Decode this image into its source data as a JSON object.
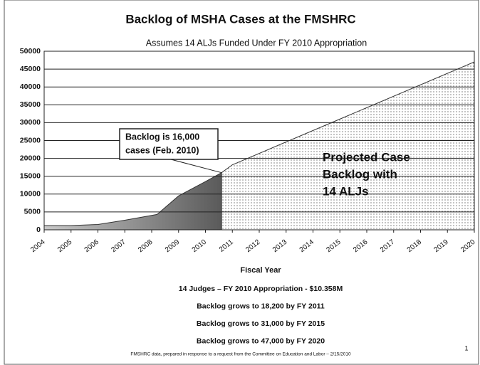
{
  "chart_data": {
    "type": "area",
    "title": "Backlog of MSHA Cases at the FMSHRC",
    "subtitle": "Assumes 14 ALJs Funded Under FY 2010 Appropriation",
    "x_label": "Fiscal Year",
    "xlim": [
      2004,
      2020
    ],
    "xticks": [
      2004,
      2005,
      2006,
      2007,
      2008,
      2009,
      2010,
      2011,
      2012,
      2013,
      2014,
      2015,
      2016,
      2017,
      2018,
      2019,
      2020
    ],
    "ylim": [
      0,
      50000
    ],
    "yticks": [
      0,
      5000,
      10000,
      15000,
      20000,
      25000,
      30000,
      35000,
      40000,
      45000,
      50000
    ],
    "grid": true,
    "series": [
      {
        "color": "#808080",
        "x": [
          2004,
          2005,
          2006,
          2007,
          2008.2,
          2009,
          2010,
          2010.6
        ],
        "values": [
          1200,
          1200,
          1500,
          2700,
          4300,
          9500,
          13500,
          16000
        ]
      },
      {
        "color": "#ffffff",
        "x": [
          2010.6,
          2011,
          2015,
          2020
        ],
        "values": [
          16000,
          18200,
          31000,
          47000
        ]
      }
    ],
    "annotations": [
      {
        "lines": [
          "Backlog is 16,000",
          "cases (Feb. 2010)"
        ]
      },
      {
        "lines": [
          "Projected Case",
          "Backlog with",
          "14 ALJs"
        ]
      }
    ],
    "notes": [
      "14 Judges – FY 2010 Appropriation - $10.358M",
      "Backlog grows to 18,200 by FY 2011",
      "Backlog grows to 31,000 by FY 2015",
      "Backlog grows to 47,000 by FY 2020"
    ],
    "source": "FMSHRC data, prepared in response to a request from the Committee on Education and Labor – 2/15/2010",
    "page_number": "1"
  }
}
